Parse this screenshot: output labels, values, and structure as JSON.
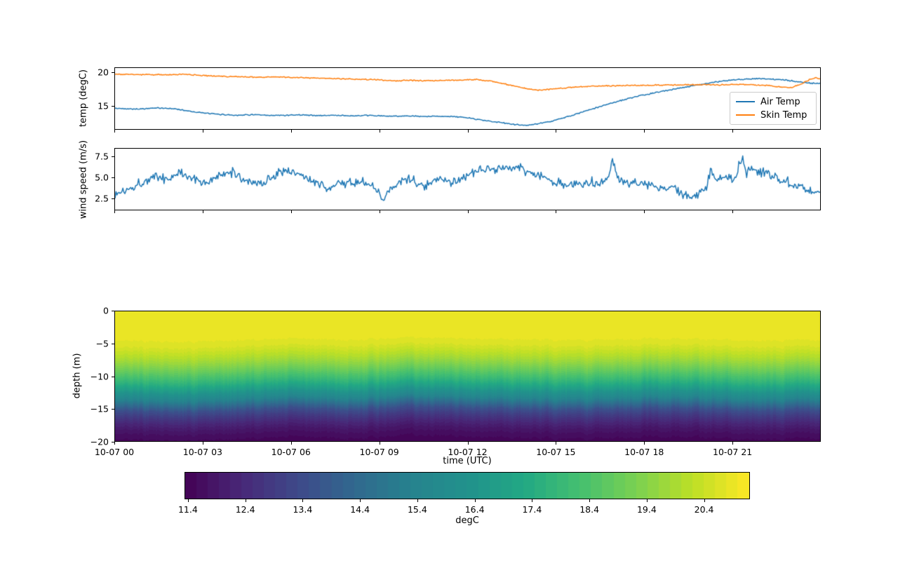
{
  "figure": {
    "background": "#ffffff"
  },
  "chart_data": [
    {
      "type": "line",
      "name": "temperature-timeseries",
      "ylabel": "temp (degC)",
      "ylim": [
        11.45,
        20.75
      ],
      "ytick_vals": [
        15,
        20
      ],
      "ytick_labels": [
        "15",
        "20"
      ],
      "xlim_hours": [
        0,
        24
      ],
      "xtick_hours": [
        0,
        3,
        6,
        9,
        12,
        15,
        18,
        21
      ],
      "grid": false,
      "legend_position": "lower right",
      "series": [
        {
          "name": "Air Temp",
          "color": "#1f77b4",
          "noise": 0.06,
          "anchors": [
            [
              0,
              14.6
            ],
            [
              0.8,
              14.5
            ],
            [
              1.4,
              14.65
            ],
            [
              1.8,
              14.6
            ],
            [
              2.1,
              14.5
            ],
            [
              2.5,
              14.2
            ],
            [
              3.0,
              13.9
            ],
            [
              3.5,
              13.7
            ],
            [
              4.1,
              13.55
            ],
            [
              4.7,
              13.65
            ],
            [
              5.2,
              13.5
            ],
            [
              5.8,
              13.55
            ],
            [
              6.3,
              13.62
            ],
            [
              6.9,
              13.5
            ],
            [
              7.5,
              13.55
            ],
            [
              8.1,
              13.45
            ],
            [
              8.7,
              13.52
            ],
            [
              9.3,
              13.4
            ],
            [
              9.9,
              13.45
            ],
            [
              10.5,
              13.35
            ],
            [
              11.1,
              13.42
            ],
            [
              11.7,
              13.3
            ],
            [
              12.1,
              13.1
            ],
            [
              12.6,
              12.75
            ],
            [
              13.1,
              12.45
            ],
            [
              13.6,
              12.15
            ],
            [
              13.95,
              12.0
            ],
            [
              14.35,
              12.2
            ],
            [
              14.85,
              12.65
            ],
            [
              15.35,
              13.25
            ],
            [
              15.85,
              13.95
            ],
            [
              16.35,
              14.65
            ],
            [
              16.85,
              15.35
            ],
            [
              17.35,
              15.95
            ],
            [
              17.85,
              16.5
            ],
            [
              18.35,
              16.95
            ],
            [
              18.85,
              17.4
            ],
            [
              19.35,
              17.8
            ],
            [
              19.85,
              18.2
            ],
            [
              20.35,
              18.55
            ],
            [
              20.85,
              18.85
            ],
            [
              21.35,
              19.05
            ],
            [
              21.85,
              19.15
            ],
            [
              22.35,
              19.05
            ],
            [
              22.85,
              18.9
            ],
            [
              23.35,
              18.6
            ],
            [
              23.7,
              18.42
            ],
            [
              24,
              18.45
            ]
          ]
        },
        {
          "name": "Skin Temp",
          "color": "#ff7f0e",
          "noise": 0.06,
          "anchors": [
            [
              0,
              19.82
            ],
            [
              0.6,
              19.78
            ],
            [
              1.2,
              19.75
            ],
            [
              1.8,
              19.72
            ],
            [
              2.2,
              19.8
            ],
            [
              2.7,
              19.68
            ],
            [
              3.2,
              19.55
            ],
            [
              3.8,
              19.45
            ],
            [
              4.4,
              19.4
            ],
            [
              5.0,
              19.35
            ],
            [
              5.5,
              19.42
            ],
            [
              6.0,
              19.3
            ],
            [
              6.6,
              19.25
            ],
            [
              7.2,
              19.18
            ],
            [
              7.8,
              19.1
            ],
            [
              8.4,
              19.02
            ],
            [
              9.0,
              18.95
            ],
            [
              9.5,
              18.8
            ],
            [
              10.0,
              18.88
            ],
            [
              10.6,
              18.8
            ],
            [
              11.2,
              18.85
            ],
            [
              11.8,
              18.9
            ],
            [
              12.3,
              19.0
            ],
            [
              12.7,
              18.8
            ],
            [
              13.1,
              18.5
            ],
            [
              13.5,
              18.1
            ],
            [
              14.0,
              17.6
            ],
            [
              14.4,
              17.35
            ],
            [
              14.8,
              17.5
            ],
            [
              15.3,
              17.7
            ],
            [
              15.8,
              17.88
            ],
            [
              16.3,
              17.98
            ],
            [
              16.9,
              18.05
            ],
            [
              17.5,
              18.1
            ],
            [
              18.1,
              18.12
            ],
            [
              18.7,
              18.18
            ],
            [
              19.3,
              18.15
            ],
            [
              19.9,
              18.22
            ],
            [
              20.5,
              18.18
            ],
            [
              21.1,
              18.25
            ],
            [
              21.7,
              18.2
            ],
            [
              22.2,
              18.1
            ],
            [
              22.7,
              17.85
            ],
            [
              23.05,
              17.8
            ],
            [
              23.35,
              18.3
            ],
            [
              23.65,
              19.0
            ],
            [
              23.85,
              19.25
            ],
            [
              24,
              19.1
            ]
          ]
        }
      ]
    },
    {
      "type": "line",
      "name": "wind-timeseries",
      "ylabel": "wind speed (m/s)",
      "ylim": [
        1.08,
        8.5
      ],
      "ytick_vals": [
        2.5,
        5.0,
        7.5
      ],
      "ytick_labels": [
        "2.5",
        "5.0",
        "7.5"
      ],
      "xlim_hours": [
        0,
        24
      ],
      "xtick_hours": [
        0,
        3,
        6,
        9,
        12,
        15,
        18,
        21
      ],
      "grid": false,
      "series": [
        {
          "name": "wind speed",
          "color": "#1f77b4",
          "noise": 0.42,
          "anchors": [
            [
              0,
              2.9
            ],
            [
              0.3,
              3.4
            ],
            [
              0.6,
              3.9
            ],
            [
              1.0,
              4.6
            ],
            [
              1.4,
              5.1
            ],
            [
              1.8,
              4.8
            ],
            [
              2.2,
              5.6
            ],
            [
              2.5,
              5.2
            ],
            [
              2.8,
              4.6
            ],
            [
              3.1,
              4.4
            ],
            [
              3.4,
              4.9
            ],
            [
              3.7,
              5.3
            ],
            [
              4.0,
              5.6
            ],
            [
              4.3,
              5.0
            ],
            [
              4.6,
              4.4
            ],
            [
              5.0,
              4.3
            ],
            [
              5.3,
              4.9
            ],
            [
              5.6,
              5.7
            ],
            [
              5.9,
              5.9
            ],
            [
              6.2,
              5.6
            ],
            [
              6.5,
              4.9
            ],
            [
              6.9,
              4.1
            ],
            [
              7.2,
              3.8
            ],
            [
              7.5,
              4.1
            ],
            [
              7.8,
              4.4
            ],
            [
              8.1,
              4.3
            ],
            [
              8.4,
              4.5
            ],
            [
              8.7,
              4.0
            ],
            [
              9.0,
              3.2
            ],
            [
              9.1,
              1.8
            ],
            [
              9.3,
              3.4
            ],
            [
              9.6,
              4.4
            ],
            [
              9.9,
              4.8
            ],
            [
              10.2,
              4.5
            ],
            [
              10.5,
              4.1
            ],
            [
              10.8,
              4.4
            ],
            [
              11.1,
              4.6
            ],
            [
              11.4,
              4.4
            ],
            [
              11.7,
              4.8
            ],
            [
              12.0,
              5.2
            ],
            [
              12.3,
              5.6
            ],
            [
              12.6,
              5.9
            ],
            [
              12.9,
              6.1
            ],
            [
              13.2,
              6.3
            ],
            [
              13.5,
              6.0
            ],
            [
              13.8,
              6.2
            ],
            [
              14.1,
              5.6
            ],
            [
              14.4,
              5.2
            ],
            [
              14.7,
              4.8
            ],
            [
              15.0,
              4.4
            ],
            [
              15.3,
              4.2
            ],
            [
              15.6,
              4.0
            ],
            [
              15.9,
              4.3
            ],
            [
              16.2,
              4.6
            ],
            [
              16.5,
              4.4
            ],
            [
              16.8,
              4.9
            ],
            [
              16.93,
              7.6
            ],
            [
              17.1,
              4.8
            ],
            [
              17.4,
              4.5
            ],
            [
              17.7,
              4.2
            ],
            [
              18.0,
              4.4
            ],
            [
              18.3,
              4.0
            ],
            [
              18.6,
              3.8
            ],
            [
              18.9,
              3.6
            ],
            [
              19.2,
              3.3
            ],
            [
              19.5,
              2.8
            ],
            [
              19.8,
              2.6
            ],
            [
              20.1,
              3.6
            ],
            [
              20.3,
              5.8
            ],
            [
              20.5,
              4.6
            ],
            [
              20.8,
              5.2
            ],
            [
              21.1,
              4.7
            ],
            [
              21.35,
              7.9
            ],
            [
              21.5,
              5.6
            ],
            [
              21.7,
              6.2
            ],
            [
              21.9,
              5.4
            ],
            [
              22.1,
              5.8
            ],
            [
              22.3,
              5.3
            ],
            [
              22.6,
              4.9
            ],
            [
              22.9,
              4.5
            ],
            [
              23.2,
              4.1
            ],
            [
              23.5,
              3.7
            ],
            [
              23.8,
              3.2
            ],
            [
              24,
              3.4
            ]
          ]
        }
      ]
    },
    {
      "type": "heatmap",
      "name": "depth-temperature-section",
      "ylabel": "depth (m)",
      "xlabel": "time (UTC)",
      "ylim": [
        -20,
        0
      ],
      "ytick_vals": [
        0,
        -5,
        -10,
        -15,
        -20
      ],
      "ytick_labels": [
        "0",
        "−5",
        "−10",
        "−15",
        "−20"
      ],
      "xlim_hours": [
        0,
        24
      ],
      "xtick_hours": [
        0,
        3,
        6,
        9,
        12,
        15,
        18,
        21
      ],
      "xtick_labels": [
        "10-07 00",
        "10-07 03",
        "10-07 06",
        "10-07 09",
        "10-07 12",
        "10-07 15",
        "10-07 18",
        "10-07 21"
      ],
      "colormap": "viridis",
      "viridis_anchors": [
        "#440154",
        "#482878",
        "#3e4989",
        "#31688e",
        "#26828e",
        "#21918c",
        "#22a884",
        "#44bf70",
        "#7ad151",
        "#bddf26",
        "#fde725"
      ],
      "profile": {
        "depths_m": [
          0,
          2,
          4,
          5,
          6,
          7,
          8,
          9,
          10,
          11,
          12,
          13,
          13.5,
          14,
          15,
          16,
          17,
          18,
          19,
          20
        ],
        "temps_degC": [
          21.0,
          20.95,
          20.85,
          20.7,
          20.35,
          19.95,
          19.45,
          18.85,
          18.2,
          17.45,
          16.6,
          15.7,
          15.2,
          14.6,
          13.55,
          12.85,
          12.3,
          11.9,
          11.6,
          11.45
        ]
      },
      "thermocline_shift": {
        "hours": [
          0,
          2,
          4,
          6,
          8,
          10,
          12,
          14,
          16,
          18,
          20,
          22,
          24
        ],
        "shift_m": [
          0.2,
          0.6,
          0.3,
          -0.1,
          0.2,
          -0.4,
          -0.2,
          0.1,
          0.3,
          -0.2,
          0.0,
          0.3,
          0.2
        ]
      },
      "column_noise_m": 0.9,
      "colorbar": {
        "label": "degC",
        "vmin": 11.34,
        "vmax": 21.2,
        "levels": 50,
        "tick_vals": [
          11.4,
          12.4,
          13.4,
          14.4,
          15.4,
          16.4,
          17.4,
          18.4,
          19.4,
          20.4
        ],
        "tick_labels": [
          "11.4",
          "12.4",
          "13.4",
          "14.4",
          "15.4",
          "16.4",
          "17.4",
          "18.4",
          "19.4",
          "20.4"
        ]
      }
    }
  ]
}
